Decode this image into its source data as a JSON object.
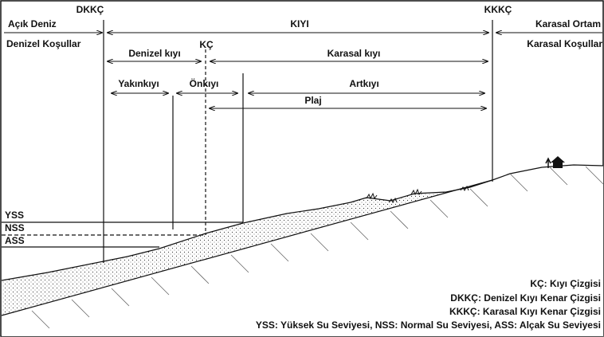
{
  "labels": {
    "dkkc": "DKKÇ",
    "acik_deniz": "Açık Deniz",
    "denizel_kosullar": "Denizel Koşullar",
    "kiyi": "KIYI",
    "kkkc": "KKKÇ",
    "karasal_ortam": "Karasal Ortam",
    "karasal_kosullar": "Karasal Koşullar",
    "denizel_kiyi": "Denizel kıyı",
    "kc": "KÇ",
    "karasal_kiyi": "Karasal kıyı",
    "yakinkiyi": "Yakınkıyı",
    "onkiyi": "Önkıyı",
    "artkiyi": "Artkıyı",
    "plaj": "Plaj",
    "yss": "YSS",
    "nss": "NSS",
    "ass": "ASS"
  },
  "legend": [
    "KÇ: Kıyı Çizgisi",
    "DKKÇ: Denizel Kıyı Kenar Çizgisi",
    "KKKÇ: Karasal Kıyı Kenar Çizgisi",
    "YSS: Yüksek Su Seviyesi, NSS: Normal Su Seviyesi, ASS: Alçak Su Seviyesi"
  ]
}
